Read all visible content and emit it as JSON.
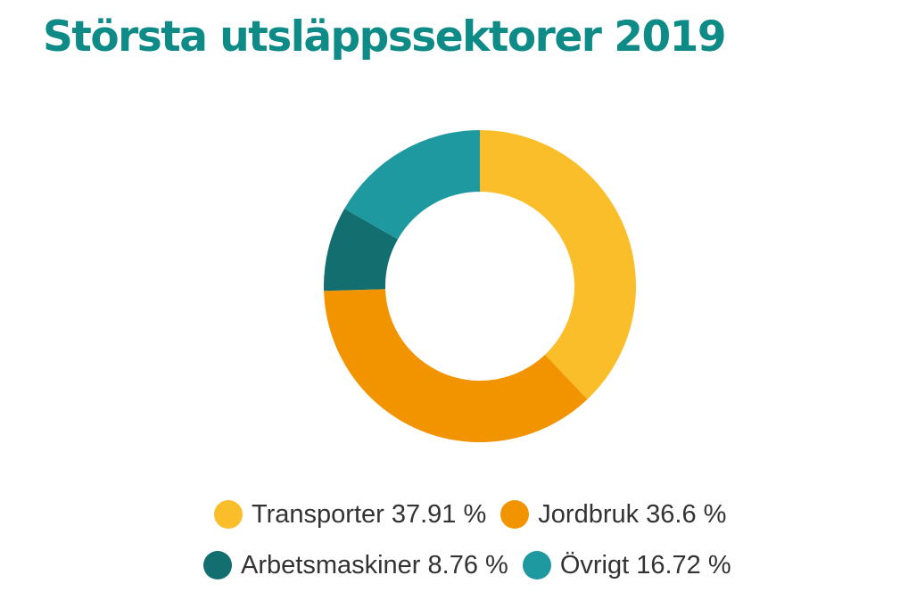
{
  "chart_data": {
    "type": "pie",
    "title": "Största utsläppssektorer 2019",
    "categories": [
      "Transporter",
      "Jordbruk",
      "Arbetsmaskiner",
      "Övrigt"
    ],
    "values": [
      37.91,
      36.6,
      8.76,
      16.72
    ],
    "unit": "%",
    "labels": [
      "Transporter 37.91 %",
      "Jordbruk 36.6 %",
      "Arbetsmaskiner 8.76 %",
      "Övrigt 16.72 %"
    ],
    "colors": [
      "#f9be2a",
      "#f29400",
      "#136e6f",
      "#1f99a0"
    ],
    "legend_position": "bottom",
    "donut": true
  }
}
